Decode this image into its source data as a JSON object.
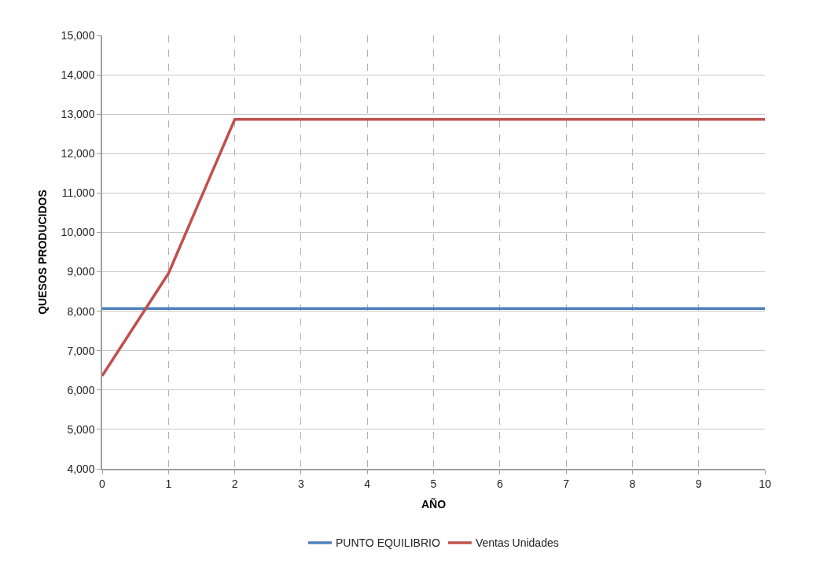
{
  "chart_data": {
    "type": "line",
    "xlabel": "AÑO",
    "ylabel": "QUESOS PRODUCIDOS",
    "x": [
      0,
      1,
      2,
      3,
      4,
      5,
      6,
      7,
      8,
      9,
      10
    ],
    "series": [
      {
        "name": "PUNTO EQUILIBRIO",
        "color": "#4f81bd",
        "values": [
          8070,
          8070,
          8070,
          8070,
          8070,
          8070,
          8070,
          8070,
          8070,
          8070,
          8070
        ]
      },
      {
        "name": "Ventas Unidades",
        "color": "#c0504d",
        "values": [
          6360,
          8960,
          12870,
          12870,
          12870,
          12870,
          12870,
          12870,
          12870,
          12870,
          12870
        ]
      }
    ],
    "xlim": [
      0,
      10
    ],
    "xticks": [
      0,
      1,
      2,
      3,
      4,
      5,
      6,
      7,
      8,
      9,
      10
    ],
    "ylim": [
      4000,
      15000
    ],
    "yticks": [
      {
        "value": 4000,
        "label": "4,000"
      },
      {
        "value": 5000,
        "label": "5,000"
      },
      {
        "value": 6000,
        "label": "6,000"
      },
      {
        "value": 7000,
        "label": "7,000"
      },
      {
        "value": 8000,
        "label": "8,000"
      },
      {
        "value": 9000,
        "label": "9,000"
      },
      {
        "value": 10000,
        "label": "10,000"
      },
      {
        "value": 11000,
        "label": "11,000"
      },
      {
        "value": 12000,
        "label": "12,000"
      },
      {
        "value": 13000,
        "label": "13,000"
      },
      {
        "value": 14000,
        "label": "14,000"
      },
      {
        "value": 15000,
        "label": "15,000"
      }
    ],
    "grid": true,
    "legend": "bottom",
    "marker": "none",
    "line_style": "solid"
  }
}
